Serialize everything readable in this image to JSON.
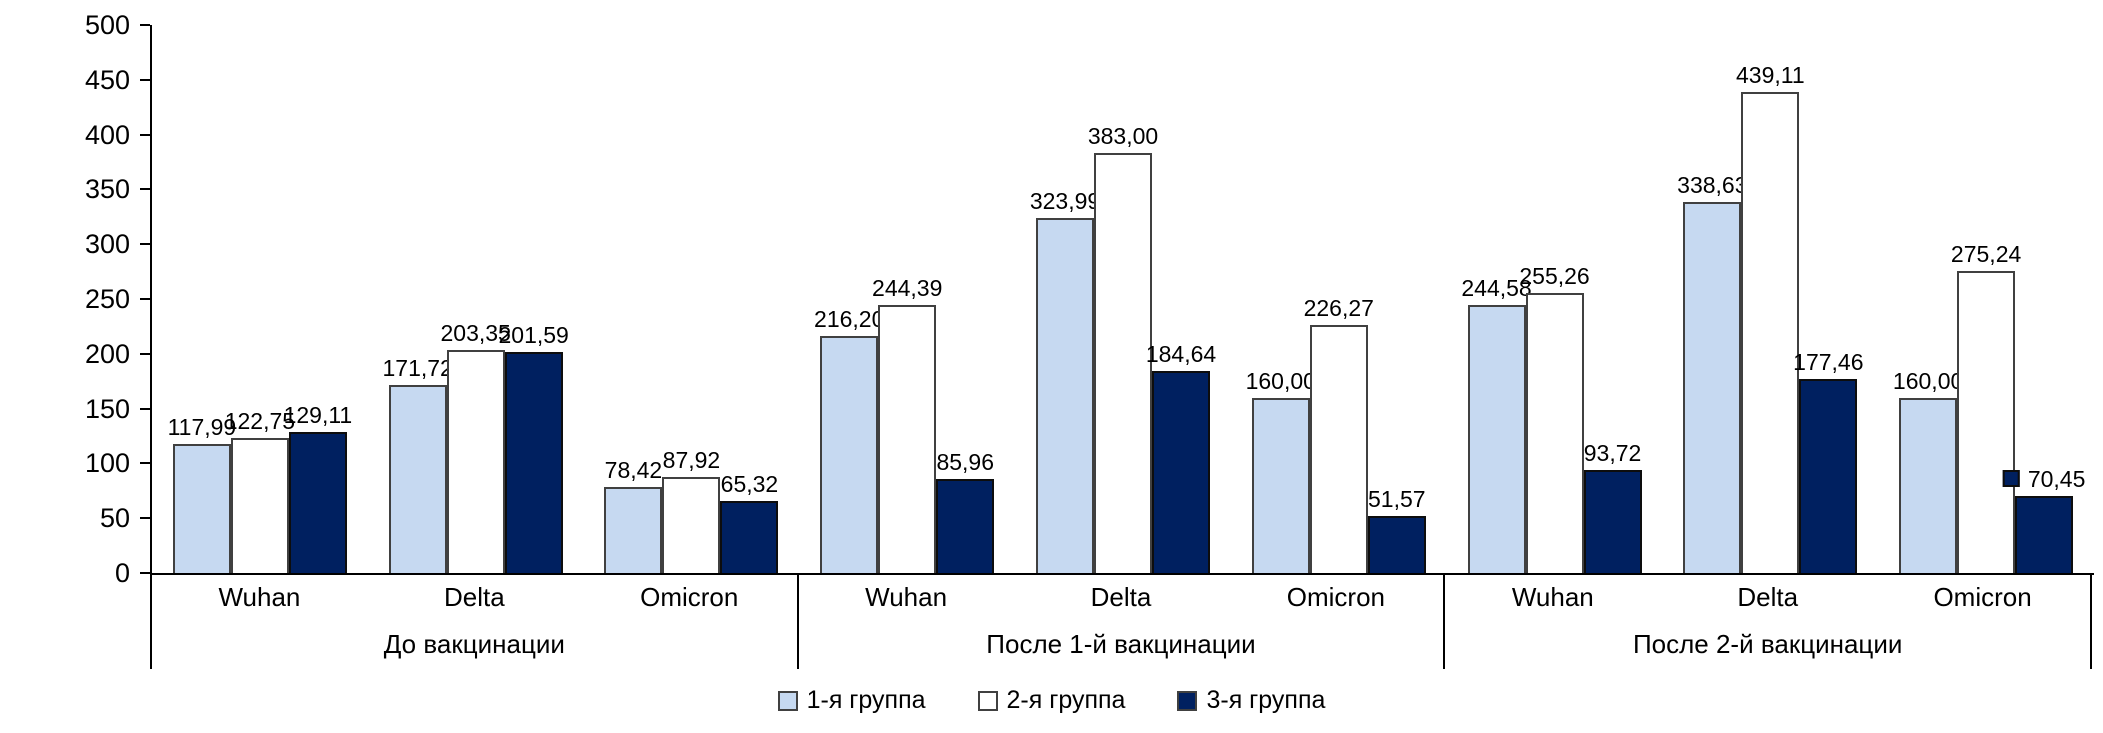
{
  "chart_data": {
    "type": "bar",
    "title": "",
    "xlabel": "",
    "ylabel": "",
    "ylim": [
      0,
      500
    ],
    "yticks": [
      0,
      50,
      100,
      150,
      200,
      250,
      300,
      350,
      400,
      450,
      500
    ],
    "grid": false,
    "legend_position": "bottom",
    "group_labels": [
      "До вакцинации",
      "После 1-й вакцинации",
      "После 2-й вакцинации"
    ],
    "categories_per_group": [
      "Wuhan",
      "Delta",
      "Omicron"
    ],
    "series": [
      {
        "name": "1-я группа",
        "fill": "#c6d9f1",
        "stroke": "#404040",
        "values": [
          117.99,
          171.72,
          78.42,
          216.2,
          323.99,
          160.0,
          244.58,
          338.63,
          160.0
        ],
        "labels": [
          "117,99",
          "171,72",
          "78,42",
          "216,20",
          "323,99",
          "160,00",
          "244,58",
          "338,63",
          "160,00"
        ]
      },
      {
        "name": "2-я группа",
        "fill": "#ffffff",
        "stroke": "#404040",
        "values": [
          122.75,
          203.35,
          87.92,
          244.39,
          383.0,
          226.27,
          255.26,
          439.11,
          275.24
        ],
        "labels": [
          "122,75",
          "203,35",
          "87,92",
          "244,39",
          "383,00",
          "226,27",
          "255,26",
          "439,11",
          "275,24"
        ]
      },
      {
        "name": "3-я группа",
        "fill": "#002060",
        "stroke": "#0d0d0d",
        "values": [
          129.11,
          201.59,
          65.32,
          85.96,
          184.64,
          51.57,
          93.72,
          177.46,
          70.45
        ],
        "labels": [
          "129,11",
          "201,59",
          "65,32",
          "85,96",
          "184,64",
          "51,57",
          "93,72",
          "177,46",
          "70,45"
        ]
      }
    ],
    "annotations": {
      "square_marker": {
        "series_index": 2,
        "value_index": 8,
        "color": "#002060",
        "note": "small navy square shown beside the 70,45 data label"
      }
    }
  }
}
